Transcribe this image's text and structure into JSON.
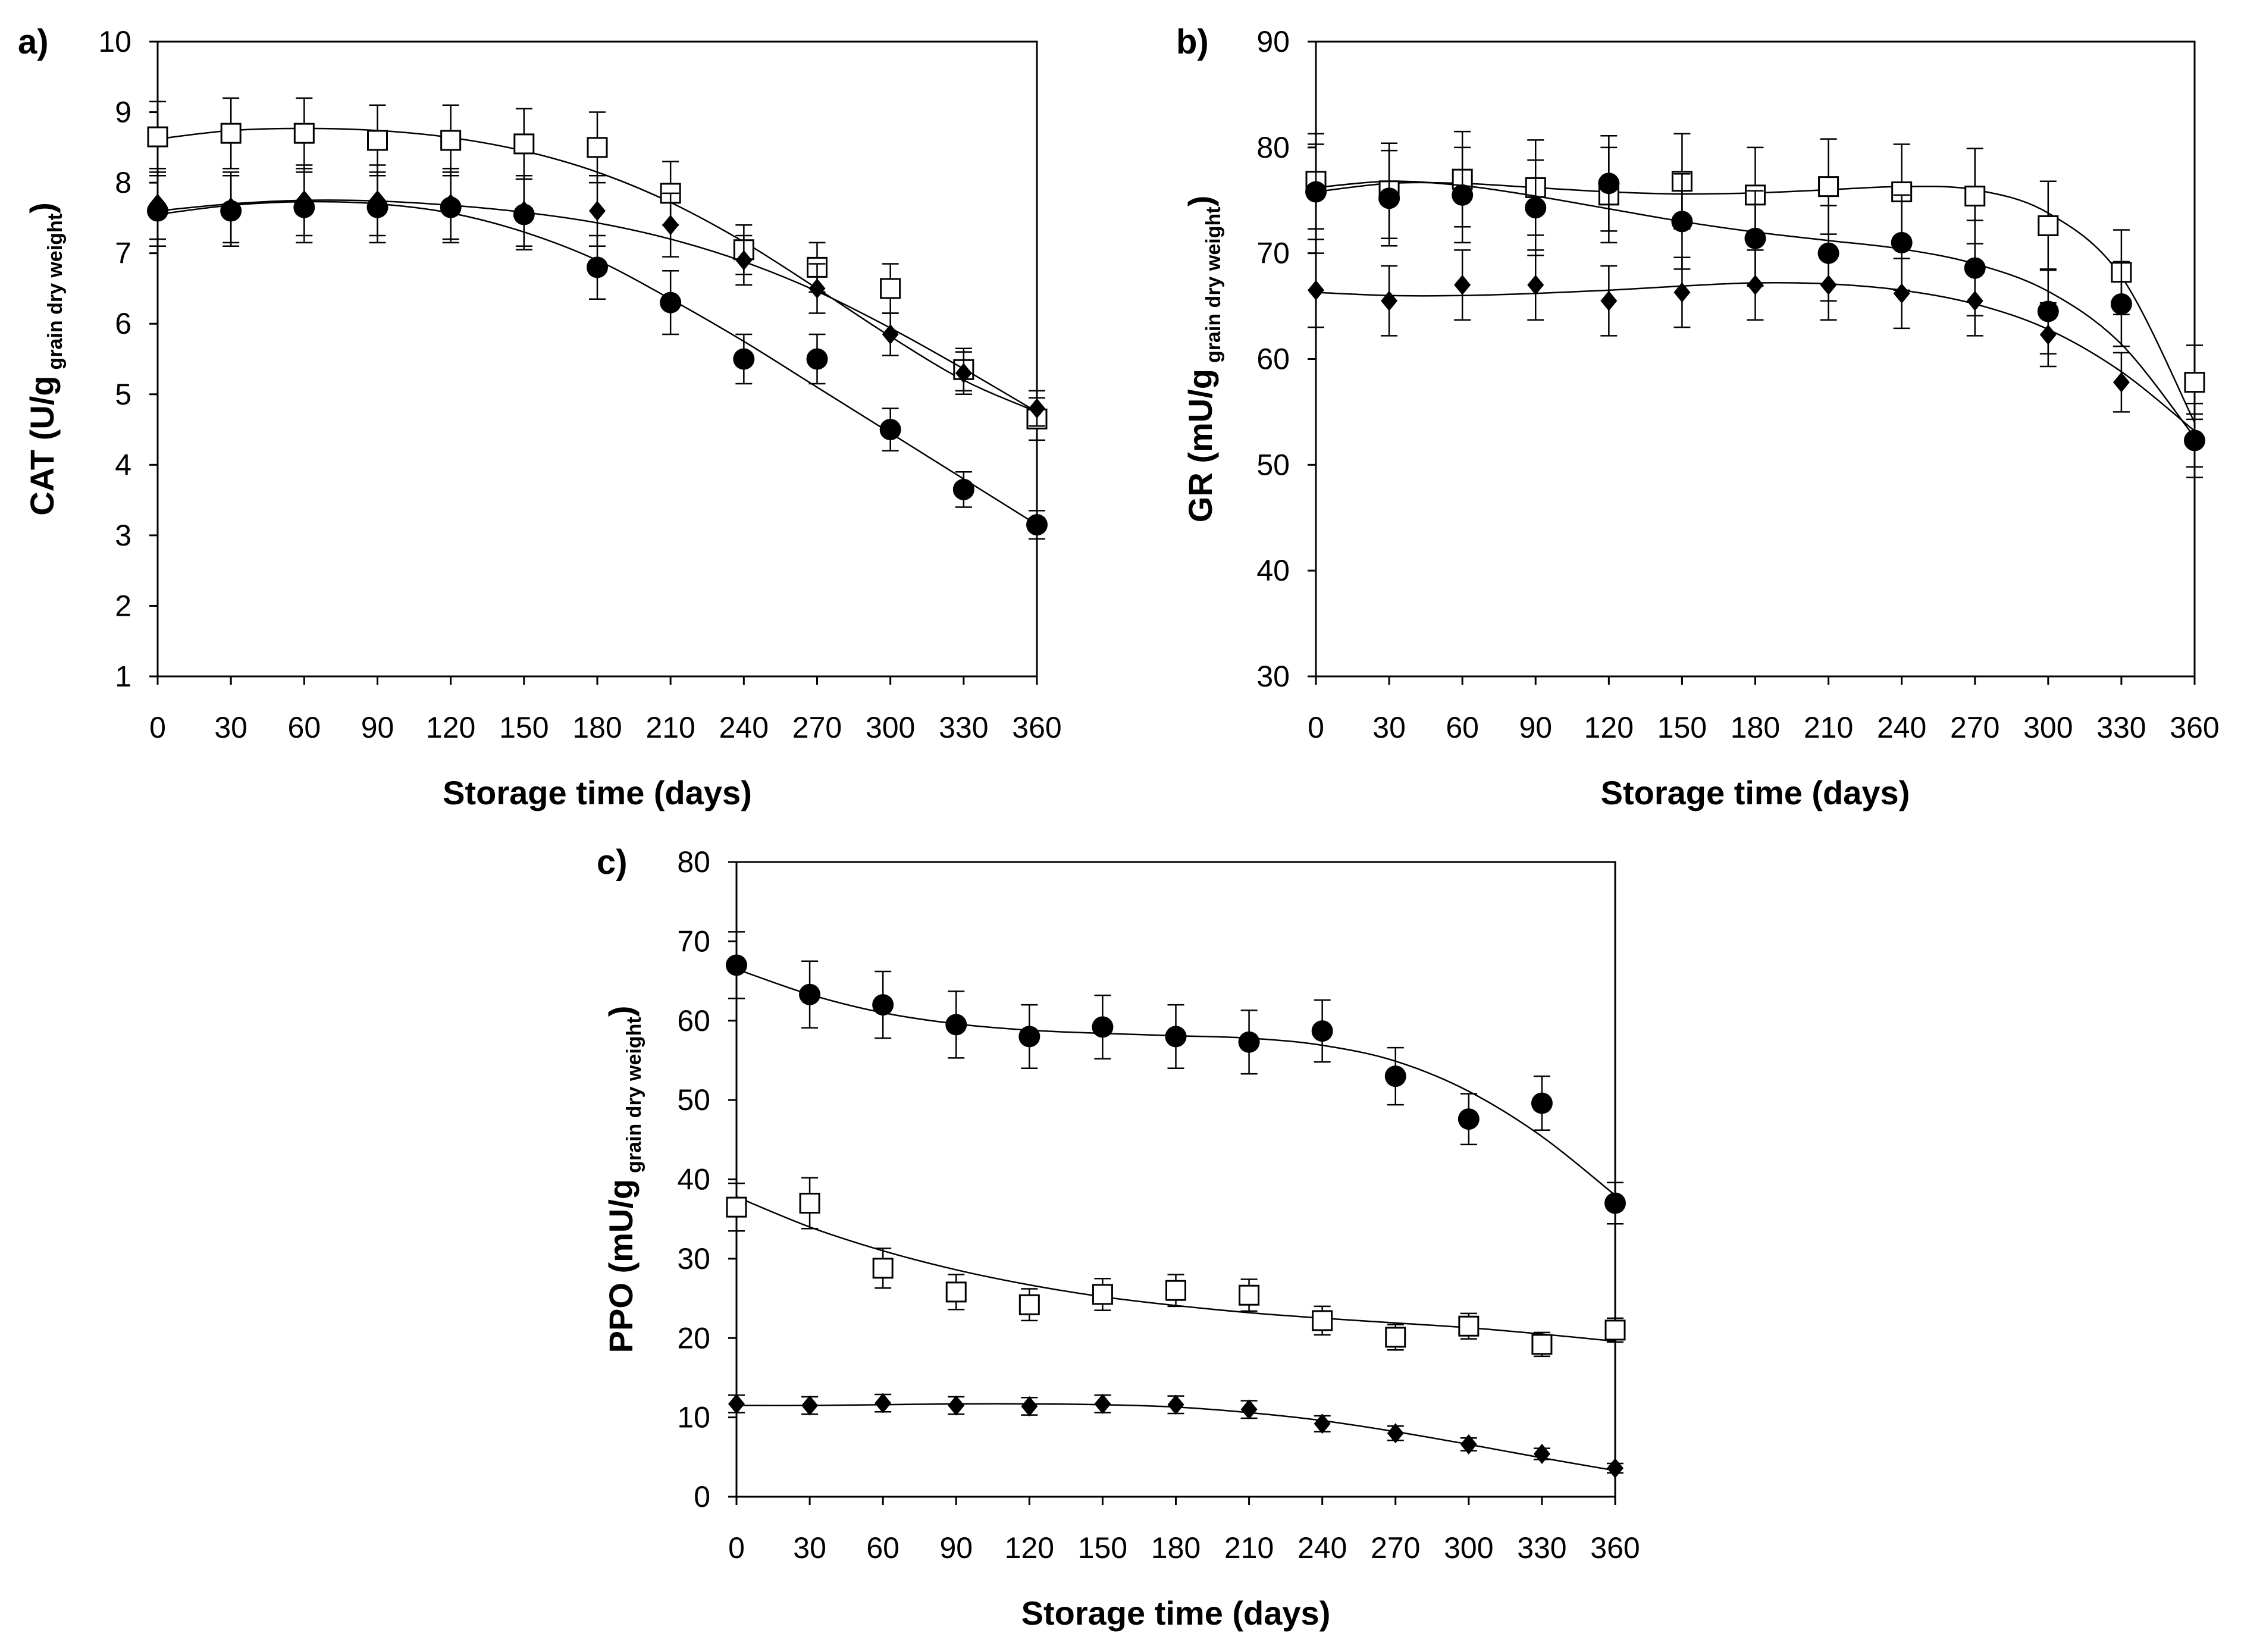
{
  "chart_data": [
    {
      "type": "scatter",
      "panel_label": "a)",
      "title": "",
      "xlabel": "Storage time (days)",
      "ylabel_main": "CAT (U/g",
      "ylabel_sub": "grain dry weight",
      "ylabel_close": ")",
      "xlim": [
        0,
        360
      ],
      "ylim": [
        1,
        10
      ],
      "x_ticks": [
        0,
        30,
        60,
        90,
        120,
        150,
        180,
        210,
        240,
        270,
        300,
        330,
        360
      ],
      "y_ticks": [
        1,
        2,
        3,
        4,
        5,
        6,
        7,
        8,
        9,
        10
      ],
      "x": [
        0,
        30,
        60,
        90,
        120,
        150,
        180,
        210,
        240,
        270,
        300,
        330,
        360
      ],
      "series": [
        {
          "name": "open-square",
          "marker": "square-open",
          "values": [
            8.65,
            8.7,
            8.7,
            8.6,
            8.6,
            8.55,
            8.5,
            7.85,
            7.05,
            6.8,
            6.5,
            5.35,
            4.65
          ],
          "errors": [
            0.5,
            0.5,
            0.5,
            0.5,
            0.5,
            0.5,
            0.5,
            0.45,
            0.35,
            0.35,
            0.35,
            0.3,
            0.3
          ],
          "fit": [
            8.62,
            8.74,
            8.77,
            8.74,
            8.64,
            8.45,
            8.15,
            7.72,
            7.16,
            6.5,
            5.82,
            5.2,
            4.75
          ]
        },
        {
          "name": "filled-diamond",
          "marker": "diamond-filled",
          "values": [
            7.7,
            7.65,
            7.75,
            7.75,
            7.7,
            7.6,
            7.6,
            7.4,
            6.9,
            6.5,
            5.85,
            5.3,
            4.8
          ],
          "errors": [
            0.5,
            0.5,
            0.5,
            0.5,
            0.5,
            0.5,
            0.5,
            0.45,
            0.35,
            0.35,
            0.3,
            0.3,
            0.25
          ],
          "fit": [
            7.6,
            7.7,
            7.75,
            7.74,
            7.68,
            7.58,
            7.43,
            7.2,
            6.88,
            6.46,
            5.94,
            5.36,
            4.75
          ]
        },
        {
          "name": "filled-circle",
          "marker": "circle-filled",
          "values": [
            7.6,
            7.6,
            7.65,
            7.65,
            7.65,
            7.55,
            6.8,
            6.3,
            5.5,
            5.5,
            4.5,
            3.65,
            3.15
          ],
          "errors": [
            0.5,
            0.5,
            0.5,
            0.5,
            0.5,
            0.5,
            0.45,
            0.45,
            0.35,
            0.35,
            0.3,
            0.25,
            0.2
          ],
          "fit": [
            7.55,
            7.68,
            7.73,
            7.7,
            7.57,
            7.3,
            6.9,
            6.35,
            5.75,
            5.1,
            4.45,
            3.8,
            3.15
          ]
        }
      ]
    },
    {
      "type": "scatter",
      "panel_label": "b)",
      "title": "",
      "xlabel": "Storage time (days)",
      "ylabel_main": "GR (mU/g",
      "ylabel_sub": "grain dry weight",
      "ylabel_close": ")",
      "xlim": [
        0,
        360
      ],
      "ylim": [
        30,
        90
      ],
      "x_ticks": [
        0,
        30,
        60,
        90,
        120,
        150,
        180,
        210,
        240,
        270,
        300,
        330,
        360
      ],
      "y_ticks": [
        30,
        40,
        50,
        60,
        70,
        80,
        90
      ],
      "x": [
        0,
        30,
        60,
        90,
        120,
        150,
        180,
        210,
        240,
        270,
        300,
        330,
        360
      ],
      "series": [
        {
          "name": "open-square",
          "marker": "square-open",
          "values": [
            76.8,
            75.9,
            77.0,
            76.2,
            75.5,
            76.8,
            75.5,
            76.3,
            75.8,
            75.4,
            72.6,
            68.2,
            57.8
          ],
          "errors": [
            4.5,
            4.5,
            4.5,
            4.5,
            4.5,
            4.5,
            4.5,
            4.5,
            4.5,
            4.5,
            4.2,
            4.0,
            3.5
          ],
          "fit": [
            75.8,
            76.6,
            76.6,
            76.2,
            75.8,
            75.6,
            75.7,
            76.0,
            76.3,
            76.0,
            73.8,
            67.8,
            54.0
          ]
        },
        {
          "name": "filled-circle",
          "marker": "circle-filled",
          "values": [
            75.8,
            75.2,
            75.5,
            74.3,
            76.6,
            73.0,
            71.4,
            70.0,
            71.0,
            68.6,
            64.5,
            65.2,
            52.3
          ],
          "errors": [
            4.5,
            4.5,
            4.5,
            4.5,
            4.5,
            4.5,
            4.5,
            4.5,
            4.5,
            4.5,
            4.0,
            4.0,
            3.5
          ],
          "fit": [
            76.2,
            76.8,
            76.4,
            75.4,
            74.2,
            73.0,
            72.0,
            71.2,
            70.4,
            69.0,
            66.4,
            61.4,
            52.6
          ]
        },
        {
          "name": "filled-diamond",
          "marker": "diamond-filled",
          "values": [
            66.5,
            65.5,
            67.0,
            67.0,
            65.5,
            66.3,
            67.0,
            67.0,
            66.2,
            65.5,
            62.3,
            57.8,
            52.3
          ],
          "errors": [
            3.5,
            3.3,
            3.3,
            3.3,
            3.3,
            3.3,
            3.3,
            3.3,
            3.3,
            3.3,
            3.0,
            2.8,
            2.5
          ],
          "fit": [
            66.3,
            66.0,
            66.0,
            66.2,
            66.5,
            66.9,
            67.2,
            67.1,
            66.5,
            65.2,
            62.8,
            58.8,
            53.2
          ]
        }
      ]
    },
    {
      "type": "scatter",
      "panel_label": "c)",
      "title": "",
      "xlabel": "Storage time (days)",
      "ylabel_main": "PPO (mU/g",
      "ylabel_sub": "grain dry weight",
      "ylabel_close": ")",
      "xlim": [
        0,
        360
      ],
      "ylim": [
        0,
        80
      ],
      "x_ticks": [
        0,
        30,
        60,
        90,
        120,
        150,
        180,
        210,
        240,
        270,
        300,
        330,
        360
      ],
      "y_ticks": [
        0,
        10,
        20,
        30,
        40,
        50,
        60,
        70,
        80
      ],
      "x": [
        0,
        30,
        60,
        90,
        120,
        150,
        180,
        210,
        240,
        270,
        300,
        330,
        360
      ],
      "series": [
        {
          "name": "filled-circle",
          "marker": "circle-filled",
          "values": [
            67.0,
            63.3,
            62.0,
            59.5,
            58.0,
            59.2,
            58.0,
            57.3,
            58.7,
            53.0,
            47.6,
            49.6,
            37.0
          ],
          "errors": [
            4.2,
            4.2,
            4.2,
            4.2,
            4.0,
            4.0,
            4.0,
            4.0,
            3.9,
            3.6,
            3.2,
            3.4,
            2.6
          ],
          "fit": [
            66.5,
            63.3,
            61.0,
            59.6,
            58.8,
            58.4,
            58.1,
            57.8,
            56.9,
            54.9,
            51.1,
            45.4,
            38.0
          ]
        },
        {
          "name": "open-square",
          "marker": "square-open",
          "values": [
            36.5,
            37.0,
            28.8,
            25.8,
            24.2,
            25.5,
            26.0,
            25.4,
            22.2,
            20.1,
            21.5,
            19.2,
            21.0
          ],
          "errors": [
            3.0,
            3.2,
            2.5,
            2.2,
            2.0,
            2.0,
            2.0,
            2.0,
            1.8,
            1.6,
            1.6,
            1.5,
            1.5
          ],
          "fit": [
            37.8,
            34.0,
            31.0,
            28.6,
            26.7,
            25.2,
            24.1,
            23.2,
            22.5,
            21.9,
            21.3,
            20.5,
            19.6
          ]
        },
        {
          "name": "filled-diamond",
          "marker": "diamond-filled",
          "values": [
            11.7,
            11.5,
            11.8,
            11.5,
            11.4,
            11.7,
            11.6,
            11.0,
            9.2,
            8.0,
            6.6,
            5.4,
            3.6
          ],
          "errors": [
            1.1,
            1.1,
            1.1,
            1.1,
            1.1,
            1.1,
            1.1,
            1.1,
            1.0,
            0.9,
            0.8,
            0.7,
            0.6
          ],
          "fit": [
            11.5,
            11.5,
            11.6,
            11.7,
            11.7,
            11.6,
            11.3,
            10.6,
            9.6,
            8.2,
            6.6,
            4.9,
            3.3
          ]
        }
      ]
    }
  ]
}
